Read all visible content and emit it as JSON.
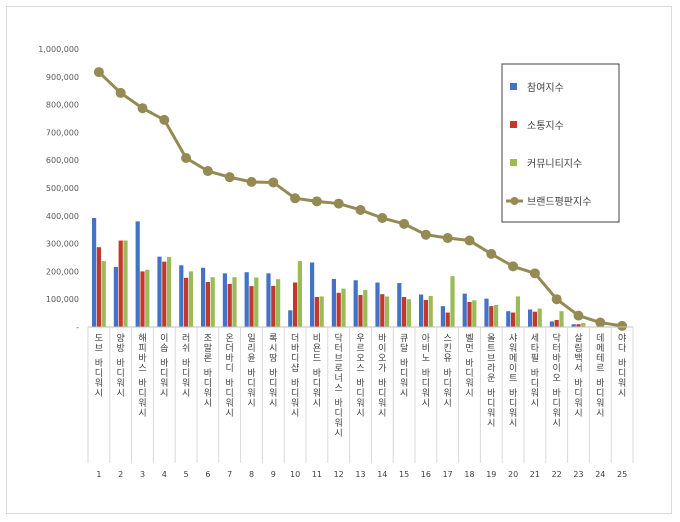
{
  "chart_data": {
    "type": "bar",
    "title": "",
    "xlabel": "",
    "ylabel": "",
    "ylim": [
      0,
      1000000
    ],
    "y_ticks": [
      "-",
      "100,000",
      "200,000",
      "300,000",
      "400,000",
      "500,000",
      "600,000",
      "700,000",
      "800,000",
      "900,000",
      "1,000,000"
    ],
    "grid": false,
    "legend_position": "top-right",
    "categories": [
      "도브 바디워시",
      "양방 바디워시",
      "해피바스 바디워시",
      "이솝 바디워시",
      "러쉬 바디워시",
      "조말론 바디워시",
      "온더바디 바디워시",
      "일리윤 바디워시",
      "록시땅 바디워시",
      "더바디샵 바디워시",
      "비욘드 바디워시",
      "닥터브로너스 바디워시",
      "우르오스 바디워시",
      "바이오가 바디워시",
      "큐달 바디워시",
      "아비노 바디워시",
      "스킨유 바디워시",
      "벨먼 바디워시",
      "올트브라운 바디워시",
      "샤워메이트 바디워시",
      "세타필 바디워시",
      "닥터바이오 바디워시",
      "살림백서 바디워시",
      "데메테르 바디워시",
      "야다 바디워시"
    ],
    "indices": [
      "1",
      "2",
      "3",
      "4",
      "5",
      "6",
      "7",
      "8",
      "9",
      "10",
      "11",
      "12",
      "13",
      "14",
      "15",
      "16",
      "17",
      "18",
      "19",
      "20",
      "21",
      "22",
      "23",
      "24",
      "25"
    ],
    "series": [
      {
        "name": "참여지수",
        "kind": "bar",
        "color": "#4472c4",
        "values": [
          392000,
          216000,
          380000,
          253000,
          222000,
          213000,
          193000,
          197000,
          193000,
          60000,
          232000,
          173000,
          168000,
          160000,
          158000,
          117000,
          75000,
          120000,
          102000,
          57000,
          63000,
          20000,
          10000,
          0,
          0
        ]
      },
      {
        "name": "소통지수",
        "kind": "bar",
        "color": "#c0392b",
        "values": [
          287000,
          311000,
          200000,
          235000,
          177000,
          162000,
          155000,
          147000,
          148000,
          160000,
          108000,
          123000,
          115000,
          118000,
          108000,
          97000,
          52000,
          90000,
          75000,
          52000,
          55000,
          25000,
          10000,
          0,
          0
        ]
      },
      {
        "name": "커뮤니티지수",
        "kind": "bar",
        "color": "#9bbb59",
        "values": [
          237000,
          311000,
          206000,
          252000,
          200000,
          179000,
          179000,
          178000,
          172000,
          237000,
          110000,
          138000,
          133000,
          110000,
          100000,
          112000,
          183000,
          96000,
          79000,
          110000,
          66000,
          57000,
          14000,
          0,
          0
        ]
      },
      {
        "name": "브랜드평판지수",
        "kind": "line",
        "color": "#948a54",
        "values": [
          917000,
          842000,
          787000,
          745000,
          608000,
          561000,
          539000,
          522000,
          520000,
          463000,
          452000,
          444000,
          421000,
          392000,
          371000,
          332000,
          320000,
          311000,
          263000,
          218000,
          193000,
          100000,
          41000,
          16000,
          4000
        ]
      }
    ]
  }
}
